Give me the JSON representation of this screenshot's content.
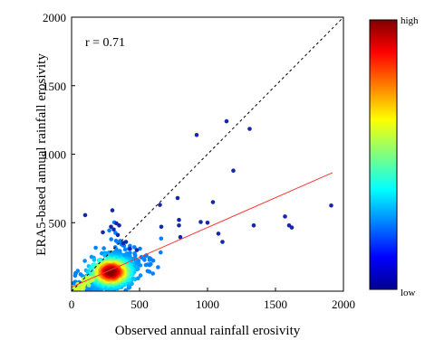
{
  "chart_data": {
    "type": "scatter",
    "xlabel": "Observed annual rainfall erosivity",
    "ylabel": "ERA5-based annual rainfall erosivity",
    "xlim": [
      0,
      2000
    ],
    "ylim": [
      0,
      2000
    ],
    "xticks": [
      0,
      500,
      1000,
      1500,
      2000
    ],
    "yticks": [
      500,
      1000,
      1500,
      2000
    ],
    "annotation": "r = 0.71",
    "grid": false,
    "colorbar": {
      "high_label": "high",
      "low_label": "low"
    },
    "reference_line": {
      "style": "dashed",
      "color": "#000000",
      "points": [
        [
          0,
          0
        ],
        [
          2000,
          2000
        ]
      ]
    },
    "fit_line": {
      "style": "solid",
      "color": "#ff3333",
      "points": [
        [
          0,
          30
        ],
        [
          1920,
          865
        ]
      ]
    },
    "cluster": {
      "description": "dense colored cluster near origin (density-coloured points)",
      "center": [
        290,
        140
      ],
      "spread": [
        80,
        55
      ]
    },
    "outliers": [
      [
        100,
        555
      ],
      [
        230,
        430
      ],
      [
        290,
        470
      ],
      [
        310,
        450
      ],
      [
        330,
        495
      ],
      [
        340,
        410
      ],
      [
        300,
        590
      ],
      [
        350,
        480
      ],
      [
        380,
        350
      ],
      [
        400,
        360
      ],
      [
        430,
        310
      ],
      [
        480,
        300
      ],
      [
        650,
        630
      ],
      [
        660,
        470
      ],
      [
        780,
        680
      ],
      [
        790,
        520
      ],
      [
        790,
        480
      ],
      [
        800,
        395
      ],
      [
        920,
        1140
      ],
      [
        950,
        505
      ],
      [
        1000,
        500
      ],
      [
        1040,
        650
      ],
      [
        1080,
        420
      ],
      [
        1110,
        360
      ],
      [
        1140,
        1240
      ],
      [
        1190,
        880
      ],
      [
        1310,
        1185
      ],
      [
        1340,
        480
      ],
      [
        1570,
        545
      ],
      [
        1600,
        480
      ],
      [
        1620,
        465
      ],
      [
        1910,
        625
      ]
    ],
    "outlier_color": "#1428a8"
  }
}
